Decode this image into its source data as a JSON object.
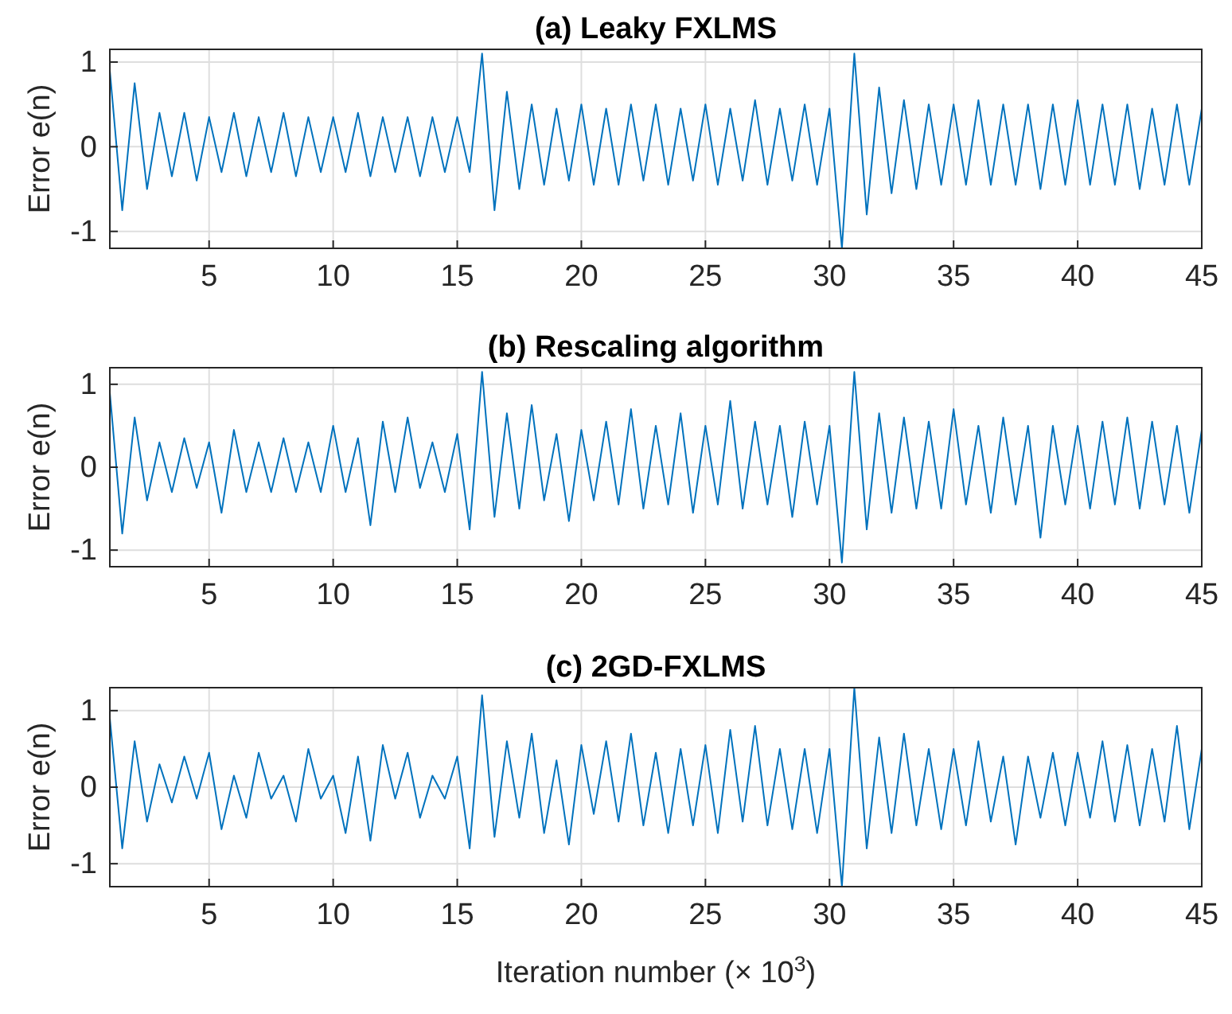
{
  "chart_data": [
    {
      "type": "line",
      "title": "(a) Leaky FXLMS",
      "ylabel": "Error e(n)",
      "xlim": [
        1,
        45
      ],
      "ylim": [
        -1.2,
        1.15
      ],
      "xticks": [
        5,
        10,
        15,
        20,
        25,
        30,
        35,
        40,
        45
      ],
      "yticks": [
        -1,
        0,
        1
      ],
      "grid": true,
      "x": [
        1,
        1.5,
        2,
        2.5,
        3,
        3.5,
        4,
        4.5,
        5,
        5.5,
        6,
        6.5,
        7,
        7.5,
        8,
        8.5,
        9,
        9.5,
        10,
        10.5,
        11,
        11.5,
        12,
        12.5,
        13,
        13.5,
        14,
        14.5,
        15,
        15.5,
        16,
        16.5,
        17,
        17.5,
        18,
        18.5,
        19,
        19.5,
        20,
        20.5,
        21,
        21.5,
        22,
        22.5,
        23,
        23.5,
        24,
        24.5,
        25,
        25.5,
        26,
        26.5,
        27,
        27.5,
        28,
        28.5,
        29,
        29.5,
        30,
        30.5,
        31,
        31.5,
        32,
        32.5,
        33,
        33.5,
        34,
        34.5,
        35,
        35.5,
        36,
        36.5,
        37,
        37.5,
        38,
        38.5,
        39,
        39.5,
        40,
        40.5,
        41,
        41.5,
        42,
        42.5,
        43,
        43.5,
        44,
        44.5,
        45
      ],
      "series": [
        {
          "color": "#0072bd",
          "values": [
            0.9,
            -0.75,
            0.75,
            -0.5,
            0.4,
            -0.35,
            0.4,
            -0.4,
            0.35,
            -0.3,
            0.4,
            -0.35,
            0.35,
            -0.3,
            0.4,
            -0.35,
            0.35,
            -0.3,
            0.35,
            -0.3,
            0.4,
            -0.35,
            0.35,
            -0.3,
            0.35,
            -0.35,
            0.35,
            -0.3,
            0.35,
            -0.3,
            1.1,
            -0.75,
            0.65,
            -0.5,
            0.5,
            -0.45,
            0.45,
            -0.4,
            0.5,
            -0.45,
            0.45,
            -0.45,
            0.5,
            -0.4,
            0.5,
            -0.45,
            0.45,
            -0.4,
            0.5,
            -0.45,
            0.45,
            -0.4,
            0.55,
            -0.45,
            0.45,
            -0.4,
            0.5,
            -0.45,
            0.45,
            -1.2,
            1.1,
            -0.8,
            0.7,
            -0.55,
            0.55,
            -0.5,
            0.5,
            -0.45,
            0.5,
            -0.45,
            0.55,
            -0.45,
            0.5,
            -0.45,
            0.5,
            -0.5,
            0.5,
            -0.45,
            0.55,
            -0.45,
            0.5,
            -0.45,
            0.5,
            -0.5,
            0.45,
            -0.45,
            0.5,
            -0.45,
            0.45
          ]
        }
      ]
    },
    {
      "type": "line",
      "title": "(b) Rescaling algorithm",
      "ylabel": "Error e(n)",
      "xlim": [
        1,
        45
      ],
      "ylim": [
        -1.2,
        1.2
      ],
      "xticks": [
        5,
        10,
        15,
        20,
        25,
        30,
        35,
        40,
        45
      ],
      "yticks": [
        -1,
        0,
        1
      ],
      "grid": true,
      "x": [
        1,
        1.5,
        2,
        2.5,
        3,
        3.5,
        4,
        4.5,
        5,
        5.5,
        6,
        6.5,
        7,
        7.5,
        8,
        8.5,
        9,
        9.5,
        10,
        10.5,
        11,
        11.5,
        12,
        12.5,
        13,
        13.5,
        14,
        14.5,
        15,
        15.5,
        16,
        16.5,
        17,
        17.5,
        18,
        18.5,
        19,
        19.5,
        20,
        20.5,
        21,
        21.5,
        22,
        22.5,
        23,
        23.5,
        24,
        24.5,
        25,
        25.5,
        26,
        26.5,
        27,
        27.5,
        28,
        28.5,
        29,
        29.5,
        30,
        30.5,
        31,
        31.5,
        32,
        32.5,
        33,
        33.5,
        34,
        34.5,
        35,
        35.5,
        36,
        36.5,
        37,
        37.5,
        38,
        38.5,
        39,
        39.5,
        40,
        40.5,
        41,
        41.5,
        42,
        42.5,
        43,
        43.5,
        44,
        44.5,
        45
      ],
      "series": [
        {
          "color": "#0072bd",
          "values": [
            0.9,
            -0.8,
            0.6,
            -0.4,
            0.3,
            -0.3,
            0.35,
            -0.25,
            0.3,
            -0.55,
            0.45,
            -0.3,
            0.3,
            -0.3,
            0.35,
            -0.3,
            0.3,
            -0.3,
            0.5,
            -0.3,
            0.35,
            -0.7,
            0.55,
            -0.3,
            0.6,
            -0.25,
            0.3,
            -0.3,
            0.4,
            -0.75,
            1.15,
            -0.6,
            0.65,
            -0.5,
            0.75,
            -0.4,
            0.4,
            -0.65,
            0.45,
            -0.4,
            0.55,
            -0.45,
            0.7,
            -0.5,
            0.5,
            -0.45,
            0.65,
            -0.55,
            0.5,
            -0.45,
            0.8,
            -0.5,
            0.55,
            -0.45,
            0.5,
            -0.6,
            0.55,
            -0.45,
            0.5,
            -1.15,
            1.15,
            -0.75,
            0.65,
            -0.55,
            0.6,
            -0.5,
            0.55,
            -0.5,
            0.7,
            -0.45,
            0.5,
            -0.55,
            0.6,
            -0.45,
            0.5,
            -0.85,
            0.5,
            -0.45,
            0.5,
            -0.5,
            0.55,
            -0.45,
            0.6,
            -0.5,
            0.55,
            -0.45,
            0.5,
            -0.55,
            0.45
          ]
        }
      ]
    },
    {
      "type": "line",
      "title": "(c) 2GD-FXLMS",
      "ylabel": "Error e(n)",
      "xlabel": "Iteration number (× 10$^{3}$)",
      "xlim": [
        1,
        45
      ],
      "ylim": [
        -1.3,
        1.3
      ],
      "xticks": [
        5,
        10,
        15,
        20,
        25,
        30,
        35,
        40,
        45
      ],
      "yticks": [
        -1,
        0,
        1
      ],
      "grid": true,
      "x": [
        1,
        1.5,
        2,
        2.5,
        3,
        3.5,
        4,
        4.5,
        5,
        5.5,
        6,
        6.5,
        7,
        7.5,
        8,
        8.5,
        9,
        9.5,
        10,
        10.5,
        11,
        11.5,
        12,
        12.5,
        13,
        13.5,
        14,
        14.5,
        15,
        15.5,
        16,
        16.5,
        17,
        17.5,
        18,
        18.5,
        19,
        19.5,
        20,
        20.5,
        21,
        21.5,
        22,
        22.5,
        23,
        23.5,
        24,
        24.5,
        25,
        25.5,
        26,
        26.5,
        27,
        27.5,
        28,
        28.5,
        29,
        29.5,
        30,
        30.5,
        31,
        31.5,
        32,
        32.5,
        33,
        33.5,
        34,
        34.5,
        35,
        35.5,
        36,
        36.5,
        37,
        37.5,
        38,
        38.5,
        39,
        39.5,
        40,
        40.5,
        41,
        41.5,
        42,
        42.5,
        43,
        43.5,
        44,
        44.5,
        45
      ],
      "series": [
        {
          "color": "#0072bd",
          "values": [
            0.9,
            -0.8,
            0.6,
            -0.45,
            0.3,
            -0.2,
            0.4,
            -0.15,
            0.45,
            -0.55,
            0.15,
            -0.4,
            0.45,
            -0.15,
            0.15,
            -0.45,
            0.5,
            -0.15,
            0.15,
            -0.6,
            0.4,
            -0.7,
            0.55,
            -0.15,
            0.45,
            -0.4,
            0.15,
            -0.15,
            0.4,
            -0.8,
            1.2,
            -0.65,
            0.6,
            -0.4,
            0.7,
            -0.6,
            0.35,
            -0.75,
            0.55,
            -0.35,
            0.6,
            -0.45,
            0.7,
            -0.5,
            0.45,
            -0.6,
            0.5,
            -0.5,
            0.55,
            -0.6,
            0.75,
            -0.45,
            0.8,
            -0.5,
            0.5,
            -0.55,
            0.5,
            -0.6,
            0.5,
            -1.3,
            1.3,
            -0.8,
            0.65,
            -0.6,
            0.7,
            -0.5,
            0.5,
            -0.55,
            0.5,
            -0.5,
            0.6,
            -0.45,
            0.4,
            -0.75,
            0.4,
            -0.4,
            0.45,
            -0.5,
            0.45,
            -0.4,
            0.6,
            -0.45,
            0.55,
            -0.5,
            0.5,
            -0.45,
            0.8,
            -0.55,
            0.5
          ]
        }
      ]
    }
  ]
}
